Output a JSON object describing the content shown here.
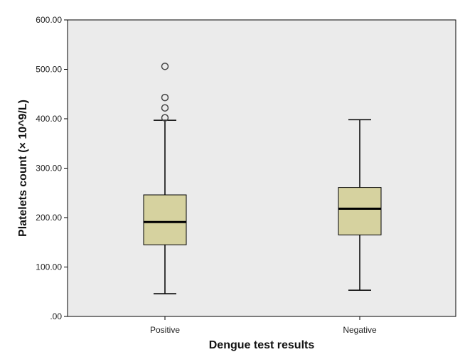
{
  "chart_data": {
    "type": "boxplot",
    "xlabel": "Dengue test results",
    "ylabel": "Platelets count (× 10^9/L)",
    "ylim": [
      0,
      600
    ],
    "yticks": [
      {
        "value": 0,
        "label": ".00"
      },
      {
        "value": 100,
        "label": "100.00"
      },
      {
        "value": 200,
        "label": "200.00"
      },
      {
        "value": 300,
        "label": "300.00"
      },
      {
        "value": 400,
        "label": "400.00"
      },
      {
        "value": 500,
        "label": "500.00"
      },
      {
        "value": 600,
        "label": "600.00"
      }
    ],
    "categories": [
      "Positive",
      "Negative"
    ],
    "boxes": [
      {
        "category": "Positive",
        "whisker_low": 46,
        "q1": 145,
        "median": 191,
        "q3": 246,
        "whisker_high": 397,
        "outliers": [
          402,
          422,
          443,
          506
        ]
      },
      {
        "category": "Negative",
        "whisker_low": 53,
        "q1": 165,
        "median": 218,
        "q3": 261,
        "whisker_high": 398,
        "outliers": []
      }
    ],
    "grid": false,
    "colors": {
      "plot_background": "#ebebeb",
      "box_fill": "#d6d29f",
      "stroke": "#000000",
      "outlier_stroke": "#444444"
    }
  }
}
